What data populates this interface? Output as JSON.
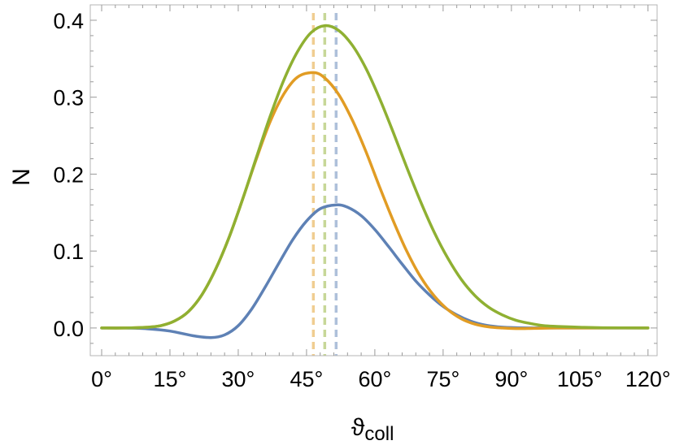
{
  "chart_data": {
    "type": "line",
    "xlabel": "ϑ",
    "xlabel_sub": "coll",
    "ylabel": "N",
    "xlim": [
      -2.5,
      122
    ],
    "ylim": [
      -0.036,
      0.42
    ],
    "x_ticks": [
      0,
      15,
      30,
      45,
      60,
      75,
      90,
      105,
      120
    ],
    "x_tick_labels": [
      "0°",
      "15°",
      "30°",
      "45°",
      "60°",
      "75°",
      "90°",
      "105°",
      "120°"
    ],
    "y_ticks": [
      0.0,
      0.1,
      0.2,
      0.3,
      0.4
    ],
    "y_tick_labels": [
      "0.0",
      "0.1",
      "0.2",
      "0.3",
      "0.4"
    ],
    "grid": false,
    "legend": "none",
    "series": [
      {
        "color": "#5e81b5",
        "peak_x": 51.5,
        "x": [
          0,
          5,
          10,
          15,
          20,
          24,
          27,
          30,
          33,
          36,
          39,
          42,
          45,
          48,
          51.5,
          54,
          57,
          60,
          63,
          66,
          69,
          72,
          75,
          78,
          81,
          84,
          87,
          90,
          95,
          100,
          110,
          120
        ],
        "y": [
          0,
          0,
          -0.001,
          -0.004,
          -0.01,
          -0.0125,
          -0.009,
          0.003,
          0.025,
          0.054,
          0.085,
          0.115,
          0.139,
          0.155,
          0.16,
          0.157,
          0.146,
          0.128,
          0.106,
          0.083,
          0.061,
          0.043,
          0.028,
          0.017,
          0.009,
          0.004,
          0.0015,
          0.0005,
          0,
          0,
          0,
          0
        ]
      },
      {
        "color": "#e19c24",
        "peak_x": 46.5,
        "x": [
          0,
          5,
          10,
          13,
          16,
          19,
          22,
          25,
          28,
          31,
          34,
          37,
          40,
          43,
          46.5,
          49,
          52,
          55,
          58,
          61,
          64,
          67,
          70,
          73,
          76,
          79,
          82,
          85,
          88,
          91,
          95,
          100,
          110,
          120
        ],
        "y": [
          0,
          0,
          0.001,
          0.003,
          0.009,
          0.021,
          0.043,
          0.076,
          0.118,
          0.168,
          0.22,
          0.268,
          0.304,
          0.326,
          0.332,
          0.325,
          0.304,
          0.271,
          0.23,
          0.184,
          0.14,
          0.1,
          0.067,
          0.042,
          0.024,
          0.012,
          0.005,
          0.0015,
          0,
          -0.0008,
          -0.0005,
          0,
          0,
          0
        ]
      },
      {
        "color": "#8fb032",
        "peak_x": 49,
        "x": [
          0,
          5,
          10,
          13,
          16,
          19,
          22,
          25,
          28,
          31,
          34,
          37,
          40,
          43,
          46,
          49,
          52,
          55,
          58,
          61,
          64,
          67,
          70,
          73,
          76,
          79,
          82,
          85,
          88,
          91,
          94,
          97,
          100,
          105,
          110,
          120
        ],
        "y": [
          0,
          0,
          0.001,
          0.003,
          0.009,
          0.021,
          0.043,
          0.076,
          0.118,
          0.168,
          0.222,
          0.275,
          0.322,
          0.359,
          0.384,
          0.393,
          0.387,
          0.368,
          0.338,
          0.299,
          0.255,
          0.209,
          0.165,
          0.125,
          0.091,
          0.063,
          0.042,
          0.027,
          0.017,
          0.01,
          0.006,
          0.003,
          0.002,
          0.001,
          0.0003,
          0
        ]
      }
    ]
  }
}
